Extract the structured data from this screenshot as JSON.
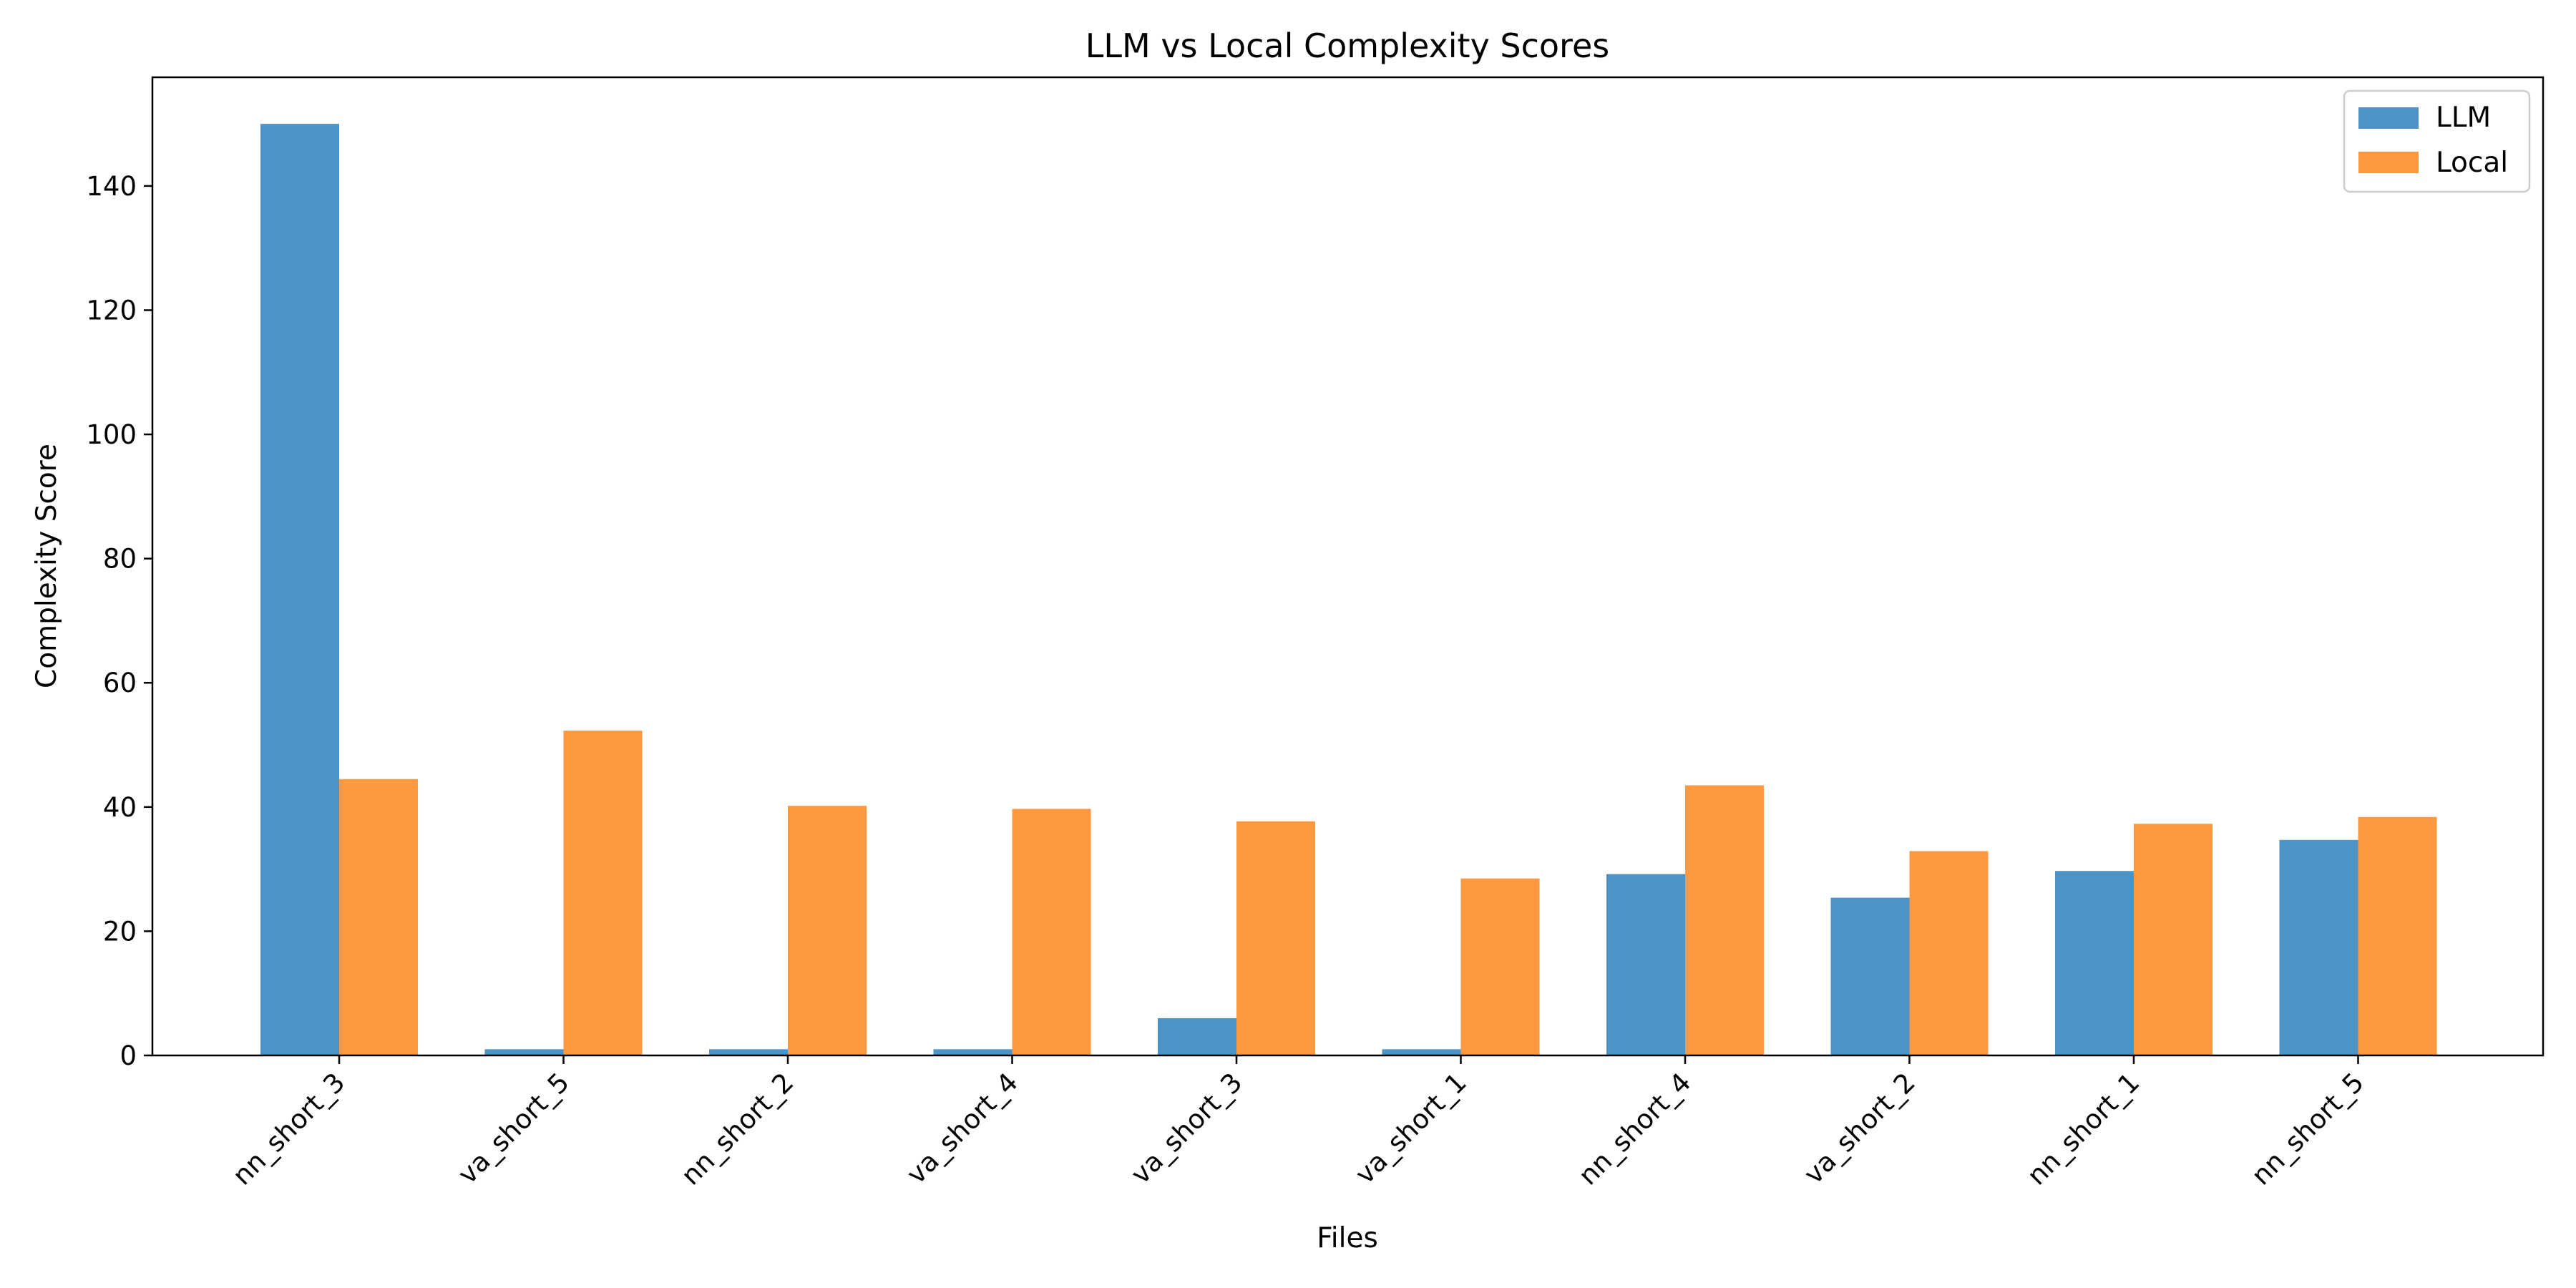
{
  "chart_data": {
    "type": "bar",
    "title": "LLM vs Local Complexity Scores",
    "xlabel": "Files",
    "ylabel": "Complexity Score",
    "ylim": [
      0,
      157.5
    ],
    "yticks": [
      0,
      20,
      40,
      60,
      80,
      100,
      120,
      140
    ],
    "categories": [
      "nn_short_3",
      "va_short_5",
      "nn_short_2",
      "va_short_4",
      "va_short_3",
      "va_short_1",
      "nn_short_4",
      "va_short_2",
      "nn_short_1",
      "nn_short_5"
    ],
    "series": [
      {
        "name": "LLM",
        "color": "#4c94c5",
        "values": [
          150,
          1,
          1,
          1,
          6,
          1,
          29.2,
          25.4,
          29.7,
          34.7
        ]
      },
      {
        "name": "Local",
        "color": "#fe9941",
        "values": [
          44.5,
          52.3,
          40.2,
          39.7,
          37.7,
          28.5,
          43.5,
          32.9,
          37.3,
          38.4
        ]
      }
    ],
    "grid": false,
    "legend_position": "top-right"
  }
}
